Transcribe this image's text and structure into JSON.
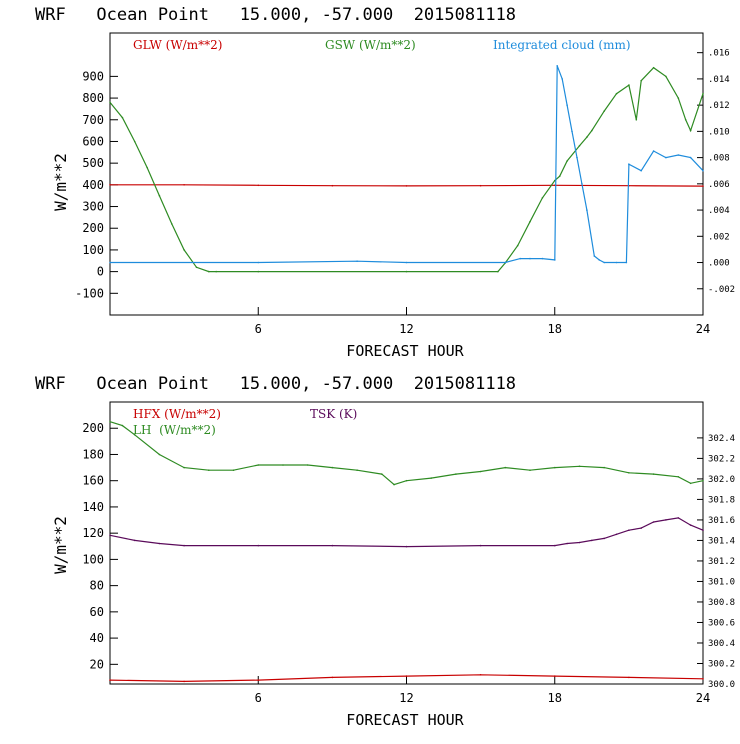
{
  "chart_data": [
    {
      "type": "line",
      "title": "WRF   Ocean Point   15.000, -57.000  2015081118",
      "xlabel": "FORECAST HOUR",
      "ylabel": "W/m**2",
      "xlim": [
        0,
        24
      ],
      "ylim": [
        -200,
        1100
      ],
      "xticks": [
        "6",
        "12",
        "18",
        "24"
      ],
      "yticks": [
        "-100",
        "0",
        "100",
        "200",
        "300",
        "400",
        "500",
        "600",
        "700",
        "800",
        "900"
      ],
      "y2lim": [
        -0.004,
        0.0175
      ],
      "y2ticks": [
        "-.002",
        ".000",
        ".002",
        ".004",
        ".006",
        ".008",
        ".010",
        ".012",
        ".014",
        ".016"
      ],
      "legend": [
        "GLW (W/m**2)",
        "GSW (W/m**2)",
        "Integrated cloud (mm)"
      ],
      "series": [
        {
          "name": "GLW (W/m**2)",
          "color": "#c80000",
          "x": [
            0,
            3,
            6,
            9,
            12,
            15,
            18,
            21,
            24
          ],
          "values": [
            400,
            400,
            398,
            396,
            395,
            396,
            398,
            396,
            394
          ]
        },
        {
          "name": "GSW (W/m**2)",
          "color": "#2e8b22",
          "x": [
            0,
            0.5,
            1,
            1.5,
            2,
            2.5,
            3,
            3.5,
            4,
            4.3,
            6,
            12,
            15.7,
            16,
            16.5,
            17,
            17.5,
            18,
            18.2,
            18.5,
            19,
            19.3,
            19.5,
            20,
            20.5,
            21,
            21.3,
            21.5,
            22,
            22.5,
            23,
            23.3,
            23.5,
            24
          ],
          "values": [
            780,
            710,
            600,
            480,
            350,
            220,
            100,
            20,
            0,
            0,
            0,
            0,
            0,
            40,
            120,
            230,
            340,
            420,
            440,
            510,
            580,
            620,
            650,
            740,
            820,
            860,
            700,
            880,
            940,
            900,
            800,
            700,
            650,
            820
          ]
        },
        {
          "name": "Integrated cloud (mm)",
          "color": "#1e8cdc",
          "axis": "right",
          "x": [
            0,
            6,
            10,
            12,
            16,
            16.6,
            17,
            17.5,
            18,
            18.1,
            18.3,
            18.5,
            18.7,
            18.9,
            19.1,
            19.3,
            19.6,
            19.8,
            20,
            20.5,
            20.9,
            21,
            21.5,
            22,
            22.5,
            23,
            23.5,
            24
          ],
          "values": [
            0,
            0,
            0.0001,
            0,
            0,
            0.0003,
            0.0003,
            0.0003,
            0.0002,
            0.015,
            0.014,
            0.012,
            0.01,
            0.008,
            0.006,
            0.004,
            0.0005,
            0.0002,
            0,
            0,
            0,
            0.0075,
            0.007,
            0.0085,
            0.008,
            0.0082,
            0.008,
            0.007
          ]
        }
      ]
    },
    {
      "type": "line",
      "title": "WRF   Ocean Point   15.000, -57.000  2015081118",
      "xlabel": "FORECAST HOUR",
      "ylabel": "W/m**2",
      "xlim": [
        0,
        24
      ],
      "ylim": [
        5,
        220
      ],
      "xticks": [
        "6",
        "12",
        "18",
        "24"
      ],
      "yticks": [
        "20",
        "40",
        "60",
        "80",
        "100",
        "120",
        "140",
        "160",
        "180",
        "200"
      ],
      "y2lim": [
        300.0,
        302.75
      ],
      "y2ticks": [
        "300.0",
        "300.2",
        "300.4",
        "300.6",
        "300.8",
        "301.0",
        "301.2",
        "301.4",
        "301.6",
        "301.8",
        "302.0",
        "302.2",
        "302.4"
      ],
      "legend": [
        "HFX (W/m**2)",
        "LH  (W/m**2)",
        "TSK (K)"
      ],
      "series": [
        {
          "name": "HFX (W/m**2)",
          "color": "#c80000",
          "x": [
            0,
            3,
            6,
            9,
            12,
            15,
            18,
            21,
            24
          ],
          "values": [
            8,
            7,
            8,
            10,
            11,
            12,
            11,
            10,
            9
          ]
        },
        {
          "name": "LH  (W/m**2)",
          "color": "#2e8b22",
          "x": [
            0,
            0.5,
            1,
            2,
            3,
            4,
            5,
            6,
            7,
            8,
            9,
            10,
            11,
            11.5,
            12,
            13,
            14,
            15,
            16,
            17,
            18,
            19,
            20,
            21,
            22,
            23,
            23.5,
            24
          ],
          "values": [
            205,
            202,
            195,
            180,
            170,
            168,
            168,
            172,
            172,
            172,
            170,
            168,
            165,
            157,
            160,
            162,
            165,
            167,
            170,
            168,
            170,
            171,
            170,
            166,
            165,
            163,
            158,
            160
          ]
        },
        {
          "name": "TSK (K)",
          "color": "#5a0a5a",
          "axis": "right",
          "x": [
            0,
            1,
            2,
            3,
            6,
            9,
            12,
            15,
            18,
            18.5,
            19,
            19.5,
            20,
            20.5,
            21,
            21.5,
            22,
            22.5,
            23,
            23.5,
            24
          ],
          "values": [
            301.45,
            301.4,
            301.37,
            301.35,
            301.35,
            301.35,
            301.34,
            301.35,
            301.35,
            301.37,
            301.38,
            301.4,
            301.42,
            301.46,
            301.5,
            301.52,
            301.58,
            301.6,
            301.62,
            301.55,
            301.5
          ]
        }
      ]
    }
  ]
}
